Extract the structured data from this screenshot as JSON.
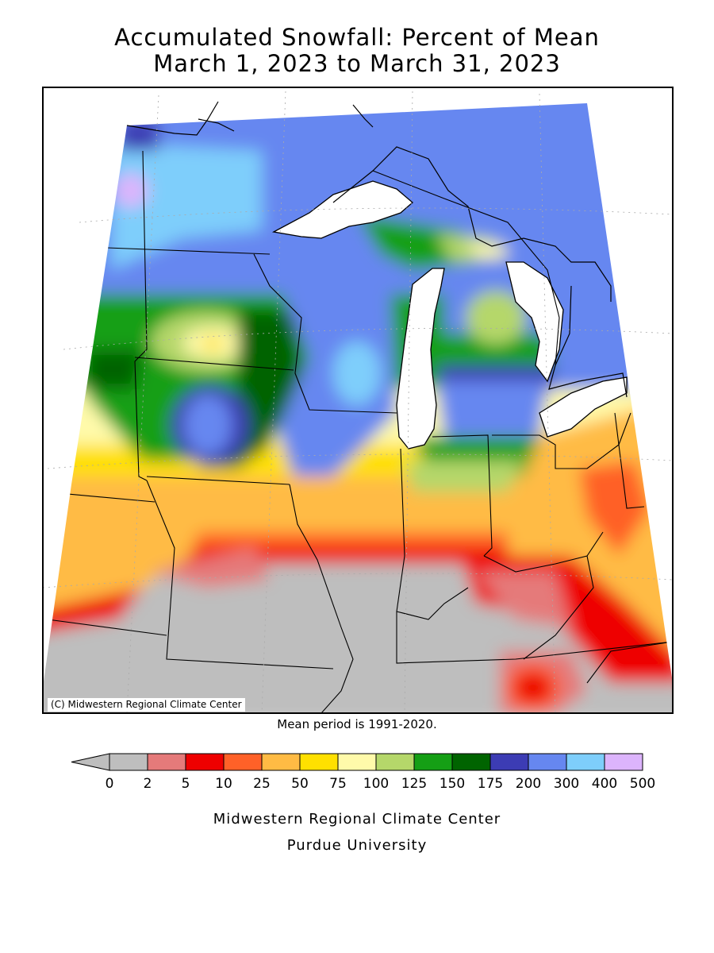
{
  "title": {
    "line1": "Accumulated Snowfall: Percent of Mean",
    "line2": "March 1, 2023 to March 31, 2023"
  },
  "map": {
    "copyright": "(C) Midwestern Regional Climate Center",
    "mean_period": "Mean period is 1991-2020."
  },
  "legend": {
    "ticks": [
      "0",
      "2",
      "5",
      "10",
      "25",
      "50",
      "75",
      "100",
      "125",
      "150",
      "175",
      "200",
      "300",
      "400",
      "500"
    ],
    "colors": [
      "#bebebe",
      "#e57a7a",
      "#ee0000",
      "#ff6128",
      "#ffbb44",
      "#ffe000",
      "#fffaaa",
      "#b5d76a",
      "#159f15",
      "#006400",
      "#3c3cb4",
      "#6687f0",
      "#7ecefb",
      "#dcb4fc"
    ],
    "below_color": "#bebebe"
  },
  "footer": {
    "org": "Midwestern Regional Climate Center",
    "university": "Purdue University"
  }
}
